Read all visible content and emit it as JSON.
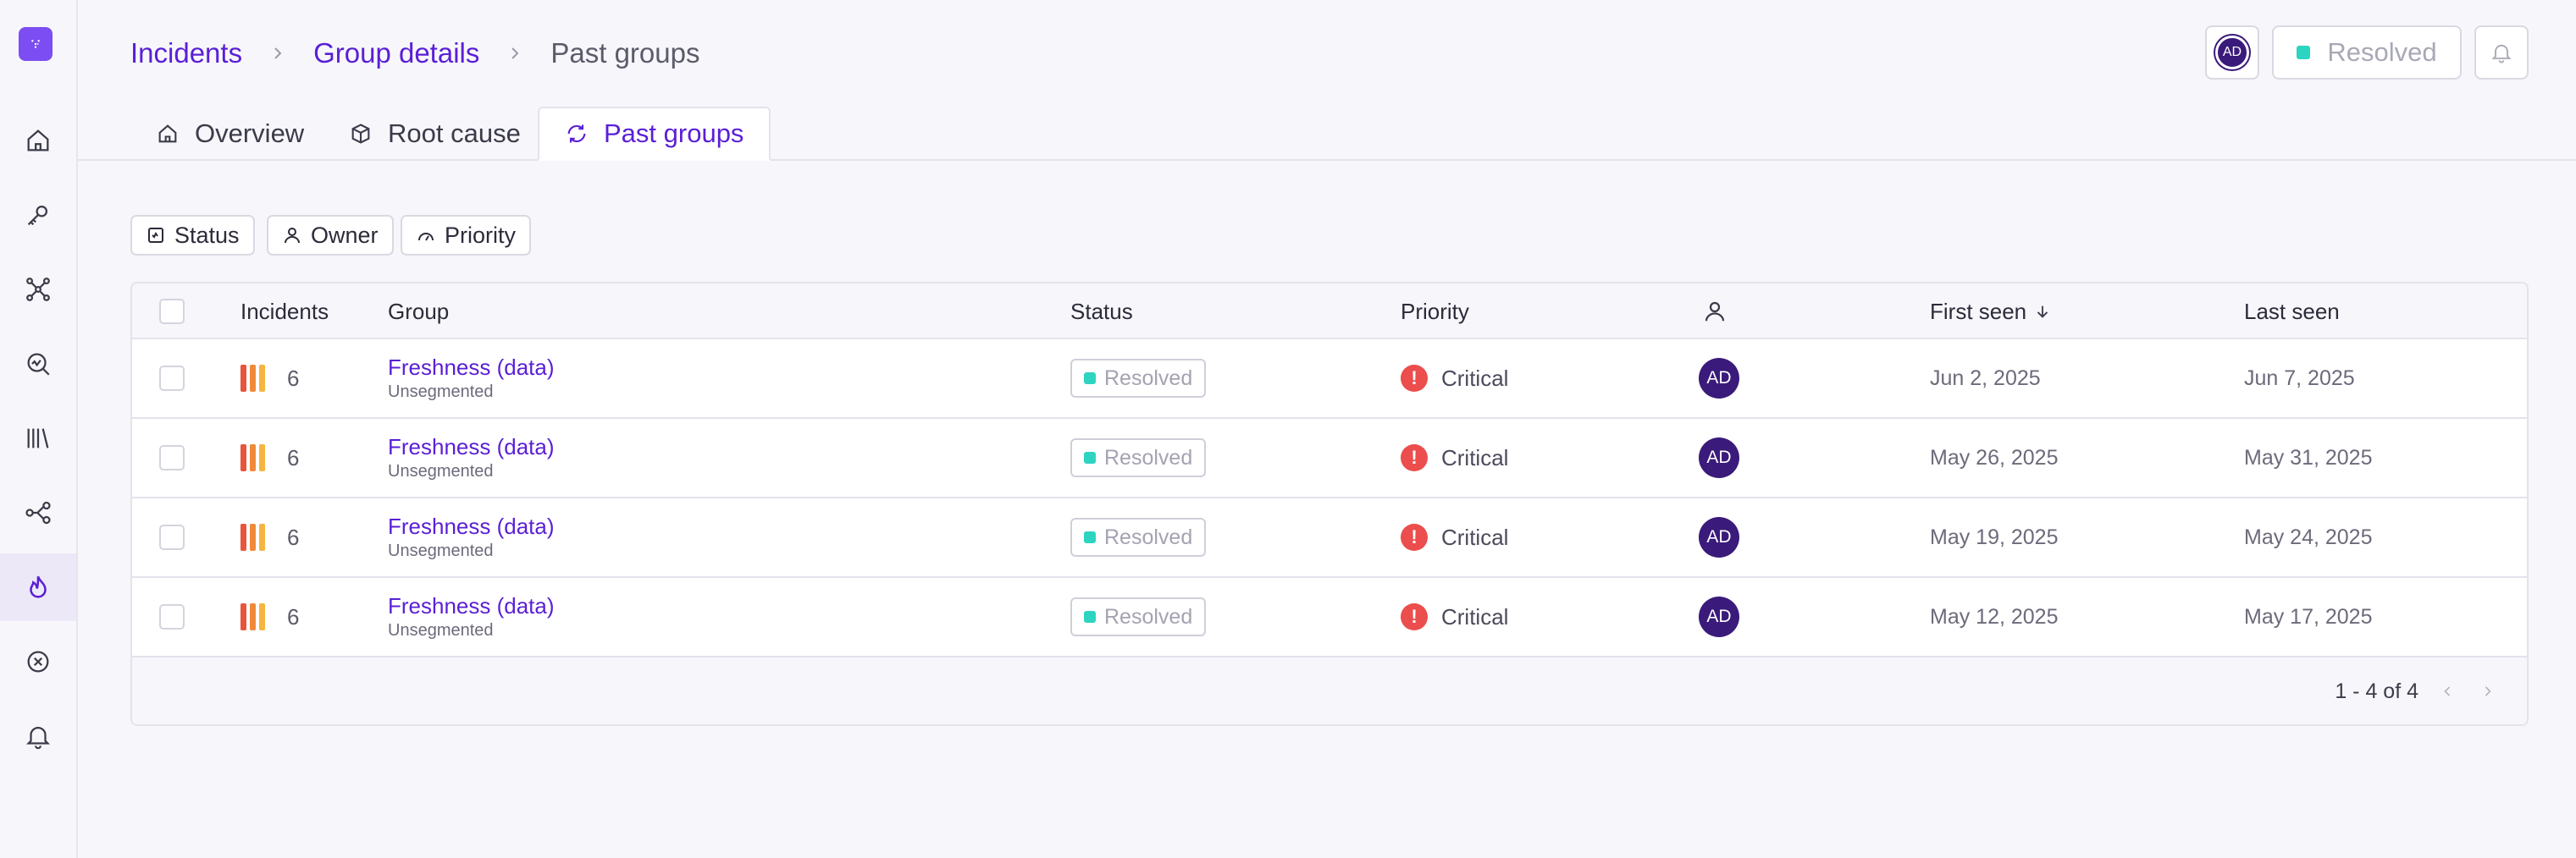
{
  "breadcrumb": {
    "items": [
      "Incidents",
      "Group details"
    ],
    "current": "Past groups"
  },
  "header": {
    "avatar_initials": "AD",
    "status_button_label": "Resolved"
  },
  "tabs": [
    {
      "label": "Overview",
      "icon": "home-icon"
    },
    {
      "label": "Root cause",
      "icon": "cube-icon"
    },
    {
      "label": "Past groups",
      "icon": "refresh-icon",
      "active": true
    }
  ],
  "filters": [
    {
      "label": "Status",
      "icon": "status-icon"
    },
    {
      "label": "Owner",
      "icon": "user-icon"
    },
    {
      "label": "Priority",
      "icon": "gauge-icon"
    }
  ],
  "table": {
    "headers": {
      "incidents": "Incidents",
      "group": "Group",
      "status": "Status",
      "priority": "Priority",
      "owner_icon": "user-icon",
      "first_seen": "First seen",
      "last_seen": "Last seen"
    },
    "sort_column": "First seen",
    "sort_direction": "descending",
    "rows": [
      {
        "incidents": "6",
        "group_name": "Freshness (data)",
        "group_sub": "Unsegmented",
        "status": "Resolved",
        "priority": "Critical",
        "owner": "AD",
        "first_seen": "Jun 2, 2025",
        "last_seen": "Jun 7, 2025"
      },
      {
        "incidents": "6",
        "group_name": "Freshness (data)",
        "group_sub": "Unsegmented",
        "status": "Resolved",
        "priority": "Critical",
        "owner": "AD",
        "first_seen": "May 26, 2025",
        "last_seen": "May 31, 2025"
      },
      {
        "incidents": "6",
        "group_name": "Freshness (data)",
        "group_sub": "Unsegmented",
        "status": "Resolved",
        "priority": "Critical",
        "owner": "AD",
        "first_seen": "May 19, 2025",
        "last_seen": "May 24, 2025"
      },
      {
        "incidents": "6",
        "group_name": "Freshness (data)",
        "group_sub": "Unsegmented",
        "status": "Resolved",
        "priority": "Critical",
        "owner": "AD",
        "first_seen": "May 12, 2025",
        "last_seen": "May 17, 2025"
      }
    ],
    "pagination": "1 - 4 of 4"
  },
  "sidebar": {
    "items": [
      "home-icon",
      "key-icon",
      "network-icon",
      "monitor-search-icon",
      "library-icon",
      "share-icon",
      "flame-icon",
      "x-circle-icon",
      "bell-icon"
    ],
    "active": "flame-icon"
  },
  "colors": {
    "accent": "#5a1fd6",
    "brand": "#7b4df2",
    "resolved": "#2dd4bf",
    "critical": "#ec4d4d",
    "avatar": "#3a1a7a",
    "incident_bars": [
      "#e8553a",
      "#f08a3a",
      "#f5b53f"
    ]
  }
}
